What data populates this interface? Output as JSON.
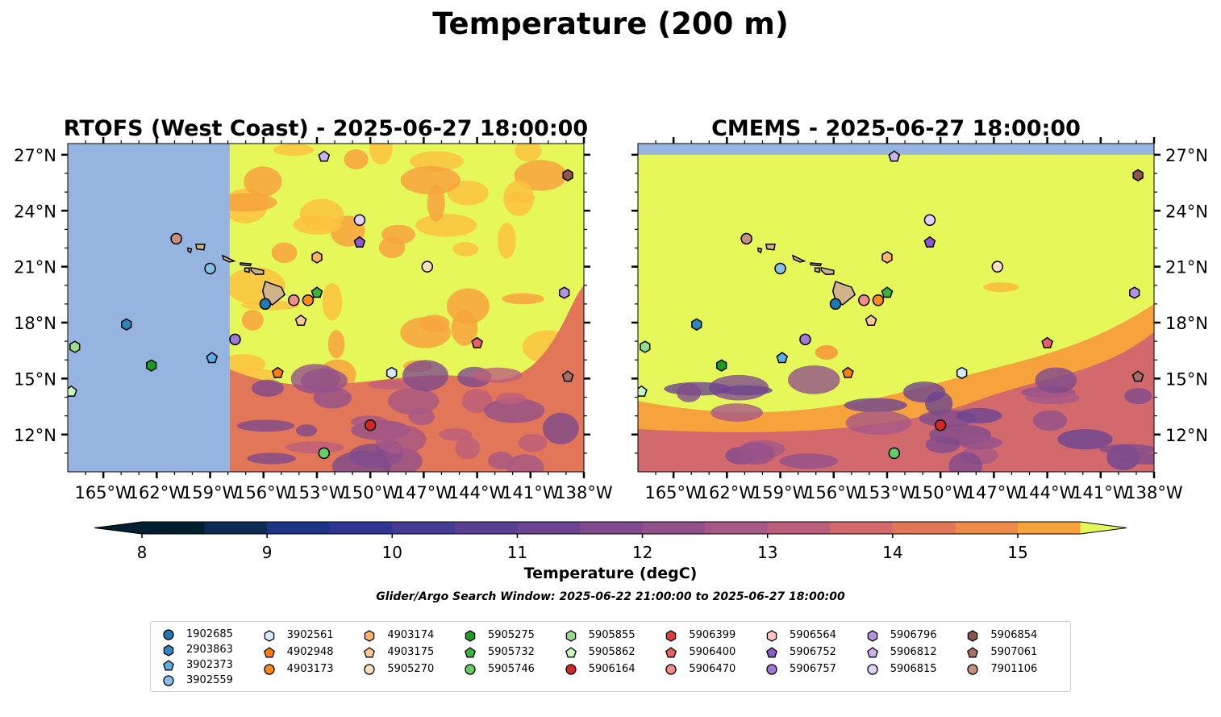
{
  "title": "Temperature (200 m)",
  "search_window": "Glider/Argo Search Window: 2025-06-22 21:00:00 to 2025-06-27 18:00:00",
  "colorbar": {
    "label": "Temperature (degC)",
    "ticks": [
      "8",
      "9",
      "10",
      "11",
      "12",
      "13",
      "14",
      "15"
    ],
    "levels": [
      8,
      8.5,
      9,
      9.5,
      10,
      10.5,
      11,
      11.5,
      12,
      12.5,
      13,
      13.5,
      14,
      14.5,
      15,
      15.5
    ],
    "colors": [
      "#031f2f",
      "#0f2b54",
      "#1e3384",
      "#2f3593",
      "#453b94",
      "#583f94",
      "#6b4590",
      "#7f4b8c",
      "#93518a",
      "#a85886",
      "#bd5f7c",
      "#d26a6d",
      "#e27658",
      "#ee8a47",
      "#f7a33d",
      "#fbc240",
      "#f5e24d"
    ],
    "under_color": "#031f2f",
    "over_color": "#e6f75a"
  },
  "colors": {
    "land": "#d2b48c",
    "nodata": "#96b4e0",
    "warm": "#e6f75a"
  },
  "chart_data": [
    {
      "type": "heatmap",
      "title": "RTOFS (West Coast) - 2025-06-27 18:00:00",
      "xlim": [
        -167,
        -138
      ],
      "ylim": [
        10,
        27.6
      ],
      "xticks": [
        "165°W",
        "162°W",
        "159°W",
        "156°W",
        "153°W",
        "150°W",
        "147°W",
        "144°W",
        "141°W",
        "138°W"
      ],
      "yticks": [
        "27°N",
        "24°N",
        "21°N",
        "18°N",
        "15°N",
        "12°N"
      ],
      "model_west_edge_lon": -157.9,
      "temperature_regions": [
        {
          "region": "north and centre",
          "approx_temp_c": 15.5
        },
        {
          "region": "south-east",
          "approx_temp_c": 13.0
        },
        {
          "region": "south, near 11°N 152°W",
          "approx_temp_c": 10.5
        }
      ],
      "floats": [
        {
          "id": "1902685",
          "lon": -155.9,
          "lat": 19.0
        },
        {
          "id": "2903863",
          "lon": -163.7,
          "lat": 17.9
        },
        {
          "id": "3902373",
          "lon": -158.9,
          "lat": 16.1
        },
        {
          "id": "3902559",
          "lon": -159.0,
          "lat": 20.9
        },
        {
          "id": "3902561",
          "lon": -148.8,
          "lat": 15.3
        },
        {
          "id": "4902948",
          "lon": -155.2,
          "lat": 15.3
        },
        {
          "id": "4903173",
          "lon": -153.5,
          "lat": 19.2
        },
        {
          "id": "4903174",
          "lon": -153.0,
          "lat": 21.5
        },
        {
          "id": "4903175",
          "lon": -153.9,
          "lat": 18.1
        },
        {
          "id": "5905270",
          "lon": -146.8,
          "lat": 21.0
        },
        {
          "id": "5905275",
          "lon": -162.3,
          "lat": 15.7
        },
        {
          "id": "5905732",
          "lon": -153.0,
          "lat": 19.6
        },
        {
          "id": "5905746",
          "lon": -152.6,
          "lat": 11.0
        },
        {
          "id": "5905855",
          "lon": -166.6,
          "lat": 16.7
        },
        {
          "id": "5905862",
          "lon": -166.8,
          "lat": 14.3
        },
        {
          "id": "5906164",
          "lon": -150.0,
          "lat": 12.5
        },
        {
          "id": "5906400",
          "lon": -144.0,
          "lat": 16.9
        },
        {
          "id": "5906470",
          "lon": -154.3,
          "lat": 19.2
        },
        {
          "id": "5906752",
          "lon": -150.6,
          "lat": 22.3
        },
        {
          "id": "5906757",
          "lon": -157.6,
          "lat": 17.1
        },
        {
          "id": "5906796",
          "lon": -139.1,
          "lat": 19.6
        },
        {
          "id": "5906812",
          "lon": -152.6,
          "lat": 26.9
        },
        {
          "id": "5906815",
          "lon": -150.6,
          "lat": 23.5
        },
        {
          "id": "5906854",
          "lon": -138.9,
          "lat": 25.9
        },
        {
          "id": "5907061",
          "lon": -138.9,
          "lat": 15.1
        },
        {
          "id": "7901106",
          "lon": -160.9,
          "lat": 22.5
        }
      ]
    },
    {
      "type": "heatmap",
      "title": "CMEMS - 2025-06-27 18:00:00",
      "xlim": [
        -167,
        -138
      ],
      "ylim": [
        10,
        27.6
      ],
      "xticks": [
        "165°W",
        "162°W",
        "159°W",
        "156°W",
        "153°W",
        "150°W",
        "147°W",
        "144°W",
        "141°W",
        "138°W"
      ],
      "yticks": [
        "27°N",
        "24°N",
        "21°N",
        "18°N",
        "15°N",
        "12°N"
      ],
      "model_north_edge_lat": 27.0,
      "temperature_regions": [
        {
          "region": "north and centre",
          "approx_temp_c": 15.5
        },
        {
          "region": "south-east",
          "approx_temp_c": 12.5
        },
        {
          "region": "south, below 13°N",
          "approx_temp_c": 10.5
        }
      ]
    }
  ],
  "legend": {
    "columns": [
      [
        {
          "id": "1902685",
          "marker": "circle",
          "color": "#1f77b4"
        },
        {
          "id": "2903863",
          "marker": "hexagon",
          "color": "#2e86c1"
        },
        {
          "id": "3902373",
          "marker": "pentagon",
          "color": "#5dade2"
        },
        {
          "id": "3902559",
          "marker": "circle",
          "color": "#85c1e9"
        }
      ],
      [
        {
          "id": "3902561",
          "marker": "hexagon",
          "color": "#d6eaf8"
        },
        {
          "id": "4902948",
          "marker": "pentagon",
          "color": "#ff7f0e"
        },
        {
          "id": "4903173",
          "marker": "circle",
          "color": "#ff8c1a"
        }
      ],
      [
        {
          "id": "4903174",
          "marker": "hexagon",
          "color": "#ffb366"
        },
        {
          "id": "4903175",
          "marker": "pentagon",
          "color": "#ffc994"
        },
        {
          "id": "5905270",
          "marker": "circle",
          "color": "#ffe0bd"
        }
      ],
      [
        {
          "id": "5905275",
          "marker": "hexagon",
          "color": "#1e9c1e"
        },
        {
          "id": "5905732",
          "marker": "pentagon",
          "color": "#3cb43c"
        },
        {
          "id": "5905746",
          "marker": "circle",
          "color": "#66cc66"
        }
      ],
      [
        {
          "id": "5905855",
          "marker": "hexagon",
          "color": "#98df8a"
        },
        {
          "id": "5905862",
          "marker": "pentagon",
          "color": "#c7f5bd"
        },
        {
          "id": "5906164",
          "marker": "circle",
          "color": "#d62728"
        }
      ],
      [
        {
          "id": "5906399",
          "marker": "hexagon",
          "color": "#e03c3c"
        },
        {
          "id": "5906400",
          "marker": "pentagon",
          "color": "#ea6060"
        },
        {
          "id": "5906470",
          "marker": "circle",
          "color": "#f28c8c"
        }
      ],
      [
        {
          "id": "5906564",
          "marker": "hexagon",
          "color": "#ffc4c4"
        },
        {
          "id": "5906752",
          "marker": "pentagon",
          "color": "#8c5ac8"
        },
        {
          "id": "5906757",
          "marker": "circle",
          "color": "#9f79d4"
        }
      ],
      [
        {
          "id": "5906796",
          "marker": "hexagon",
          "color": "#b293e0"
        },
        {
          "id": "5906812",
          "marker": "pentagon",
          "color": "#c9b3ee"
        },
        {
          "id": "5906815",
          "marker": "circle",
          "color": "#e0d2f8"
        }
      ],
      [
        {
          "id": "5906854",
          "marker": "hexagon",
          "color": "#8c564b"
        },
        {
          "id": "5907061",
          "marker": "pentagon",
          "color": "#a86e62"
        },
        {
          "id": "7901106",
          "marker": "circle",
          "color": "#c49080"
        }
      ]
    ]
  }
}
